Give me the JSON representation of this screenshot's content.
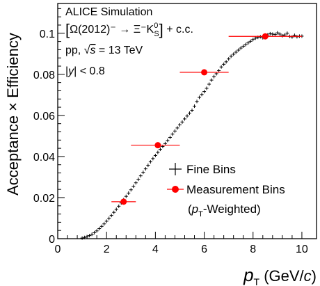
{
  "chart_data": {
    "type": "scatter",
    "annotations": {
      "experiment": "ALICE Simulation",
      "channel": "[Ω(2012)⁻ → Ξ⁻K⁰S] + c.c.",
      "system": "pp, √s = 13 TeV",
      "rapidity": "|y| < 0.8"
    },
    "xlabel": "pT (GeV/c)",
    "ylabel": "Acceptance × Efficiency",
    "xlim": [
      0,
      10.6
    ],
    "ylim": [
      0,
      0.1145
    ],
    "xticks": [
      0,
      2,
      4,
      6,
      8,
      10
    ],
    "yticks": [
      0,
      0.02,
      0.04,
      0.06,
      0.08,
      0.1
    ],
    "ytick_labels": [
      "0",
      "0.02",
      "0.04",
      "0.06",
      "0.08",
      "0.1"
    ],
    "legend": {
      "placement": "bottom-right"
    },
    "series": [
      {
        "name": "Fine Bins",
        "marker": "cross",
        "color": "#000000",
        "x": [
          1.0,
          1.1,
          1.2,
          1.3,
          1.4,
          1.5,
          1.6,
          1.7,
          1.8,
          1.9,
          2.0,
          2.1,
          2.2,
          2.3,
          2.4,
          2.5,
          2.6,
          2.7,
          2.8,
          2.9,
          3.0,
          3.1,
          3.2,
          3.3,
          3.4,
          3.5,
          3.6,
          3.7,
          3.8,
          3.9,
          4.0,
          4.1,
          4.2,
          4.3,
          4.4,
          4.5,
          4.6,
          4.7,
          4.8,
          4.9,
          5.0,
          5.1,
          5.2,
          5.3,
          5.4,
          5.5,
          5.6,
          5.7,
          5.8,
          5.9,
          6.0,
          6.1,
          6.2,
          6.3,
          6.4,
          6.5,
          6.6,
          6.7,
          6.8,
          6.9,
          7.0,
          7.1,
          7.2,
          7.3,
          7.4,
          7.5,
          7.6,
          7.7,
          7.8,
          7.9,
          8.0,
          8.1,
          8.2,
          8.3,
          8.4,
          8.5,
          8.6,
          8.7,
          8.8,
          8.9,
          9.0,
          9.1,
          9.2,
          9.3,
          9.4,
          9.5,
          9.6,
          9.7,
          9.8,
          9.9,
          10.0
        ],
        "y": [
          0.0003,
          0.0006,
          0.001,
          0.0015,
          0.0021,
          0.0029,
          0.0038,
          0.0049,
          0.006,
          0.0072,
          0.0085,
          0.0099,
          0.0113,
          0.0128,
          0.0143,
          0.0158,
          0.0174,
          0.019,
          0.0206,
          0.0222,
          0.0238,
          0.0255,
          0.0272,
          0.0289,
          0.0306,
          0.0323,
          0.034,
          0.0357,
          0.0374,
          0.039,
          0.0405,
          0.042,
          0.0435,
          0.0449,
          0.0463,
          0.0478,
          0.0493,
          0.0509,
          0.0524,
          0.0539,
          0.0554,
          0.0568,
          0.0583,
          0.0597,
          0.0611,
          0.0625,
          0.0645,
          0.0668,
          0.0688,
          0.0702,
          0.0716,
          0.0732,
          0.0752,
          0.0772,
          0.0789,
          0.0803,
          0.0818,
          0.0836,
          0.0849,
          0.0861,
          0.0875,
          0.0888,
          0.0898,
          0.0908,
          0.0918,
          0.0928,
          0.0937,
          0.0945,
          0.0953,
          0.0961,
          0.097,
          0.0976,
          0.098,
          0.0983,
          0.0978,
          0.0988,
          0.0992,
          0.0998,
          0.0996,
          0.0994,
          0.1002,
          0.0996,
          0.0988,
          0.0992,
          0.1,
          0.0985,
          0.0982,
          0.099,
          0.0983,
          0.0986,
          0.0986
        ]
      },
      {
        "name": "Measurement Bins (pT-Weighted)",
        "marker": "circle",
        "color": "#ff0000",
        "x": [
          2.7,
          4.1,
          6.0,
          8.5
        ],
        "y": [
          0.018,
          0.0455,
          0.081,
          0.0985
        ],
        "xerr_low": [
          2.2,
          3.0,
          5.0,
          7.0
        ],
        "xerr_high": [
          3.2,
          5.0,
          7.0,
          10.0
        ]
      }
    ]
  }
}
